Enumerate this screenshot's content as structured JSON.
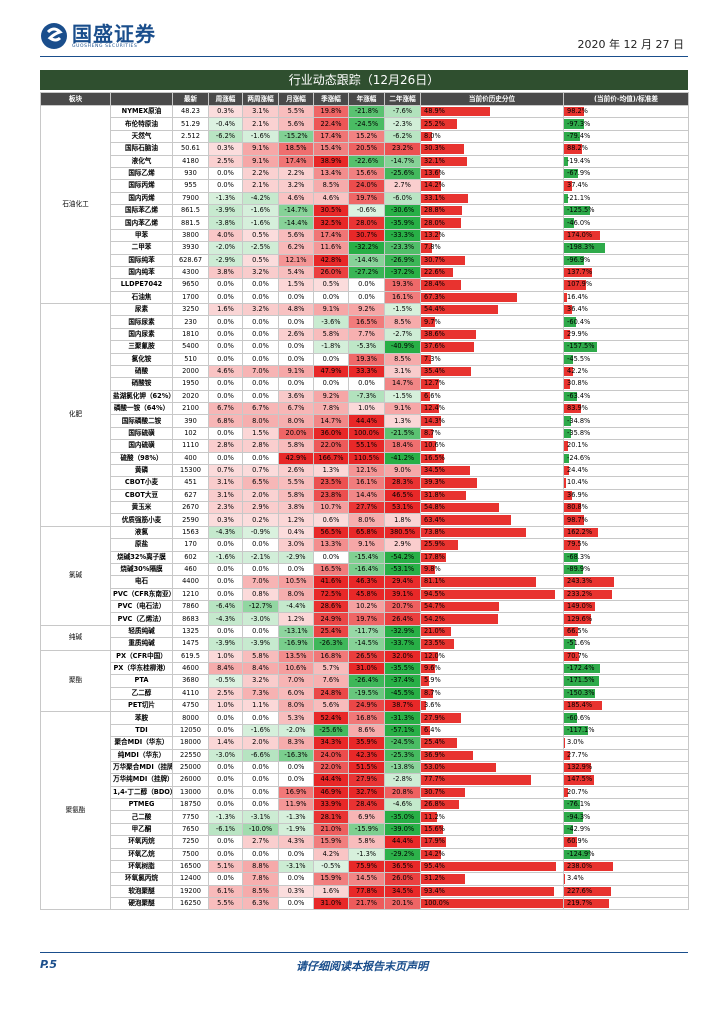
{
  "header": {
    "logo": "国盛证券",
    "logo_sub": "GUOSHENG SECURITIES",
    "date": "2020 年 12 月 27 日"
  },
  "table": {
    "title": "行业动态跟踪（12月26日）",
    "columns": [
      "板块",
      "",
      "最新",
      "周涨幅",
      "两周涨幅",
      "月涨幅",
      "季涨幅",
      "年涨幅",
      "二年涨幅",
      "当前价历史分位",
      "(当前价-均值)/标准差"
    ],
    "groups": [
      {
        "name": "石油化工",
        "rows": [
          [
            "NYMEX原油",
            "48.23",
            "0.3%",
            "3.1%",
            "5.5%",
            "19.8%",
            "-21.8%",
            "-7.6%",
            "48.9%",
            "98.2%"
          ],
          [
            "布伦特原油",
            "51.29",
            "-0.4%",
            "2.1%",
            "5.6%",
            "22.4%",
            "-24.5%",
            "-2.3%",
            "25.2%",
            "-97.3%"
          ],
          [
            "天然气",
            "2.512",
            "-6.2%",
            "-1.6%",
            "-15.2%",
            "17.4%",
            "15.2%",
            "-6.2%",
            "8.0%",
            "-79.4%"
          ],
          [
            "国际石脑油",
            "50.61",
            "0.3%",
            "9.1%",
            "18.5%",
            "15.4%",
            "20.5%",
            "23.2%",
            "30.3%",
            "88.2%"
          ],
          [
            "液化气",
            "4180",
            "2.5%",
            "9.1%",
            "17.4%",
            "38.9%",
            "-22.6%",
            "-14.7%",
            "32.1%",
            "-19.4%"
          ],
          [
            "国际乙烯",
            "930",
            "0.0%",
            "2.2%",
            "2.2%",
            "13.4%",
            "15.6%",
            "-25.6%",
            "13.6%",
            "-67.9%"
          ],
          [
            "国际丙烯",
            "955",
            "0.0%",
            "2.1%",
            "3.2%",
            "8.5%",
            "24.0%",
            "2.7%",
            "14.2%",
            "37.4%"
          ],
          [
            "国内丙烯",
            "7900",
            "-1.3%",
            "-4.2%",
            "4.6%",
            "4.6%",
            "19.7%",
            "-6.0%",
            "33.1%",
            "-21.1%"
          ],
          [
            "国际苯乙烯",
            "861.5",
            "-3.9%",
            "-1.6%",
            "-14.7%",
            "30.5%",
            "-0.6%",
            "-30.6%",
            "28.8%",
            "-125.5%"
          ],
          [
            "国内苯乙烯",
            "881.5",
            "-3.8%",
            "-1.6%",
            "-14.4%",
            "32.5%",
            "28.0%",
            "-35.9%",
            "28.0%",
            "-46.0%"
          ],
          [
            "甲苯",
            "3800",
            "4.0%",
            "0.5%",
            "5.6%",
            "17.4%",
            "30.7%",
            "-33.3%",
            "13.2%",
            "174.0%"
          ],
          [
            "二甲苯",
            "3930",
            "-2.0%",
            "-2.5%",
            "6.2%",
            "11.6%",
            "-32.2%",
            "-23.3%",
            "7.8%",
            "-198.3%"
          ],
          [
            "国际纯苯",
            "628.67",
            "-2.9%",
            "0.5%",
            "12.1%",
            "42.8%",
            "-14.4%",
            "-26.9%",
            "30.7%",
            "-96.9%"
          ],
          [
            "国内纯苯",
            "4300",
            "3.8%",
            "3.2%",
            "5.4%",
            "26.0%",
            "-27.2%",
            "-37.2%",
            "22.6%",
            "137.7%"
          ],
          [
            "LLDPE7042",
            "9650",
            "0.0%",
            "0.0%",
            "1.5%",
            "0.5%",
            "0.0%",
            "19.3%",
            "28.4%",
            "107.9%"
          ],
          [
            "石油焦",
            "1700",
            "0.0%",
            "0.0%",
            "0.0%",
            "0.0%",
            "0.0%",
            "16.1%",
            "67.3%",
            "16.4%"
          ]
        ]
      },
      {
        "name": "化肥",
        "rows": [
          [
            "尿素",
            "3250",
            "1.6%",
            "3.2%",
            "4.8%",
            "9.1%",
            "9.2%",
            "-1.5%",
            "54.4%",
            "36.4%"
          ],
          [
            "国际尿素",
            "230",
            "0.0%",
            "0.0%",
            "0.0%",
            "-3.6%",
            "16.5%",
            "8.5%",
            "9.7%",
            "-60.4%"
          ],
          [
            "国内尿素",
            "1810",
            "0.0%",
            "0.0%",
            "2.6%",
            "5.8%",
            "7.7%",
            "-2.7%",
            "38.6%",
            "29.9%"
          ],
          [
            "三聚氰胺",
            "5400",
            "0.0%",
            "0.0%",
            "0.0%",
            "-1.8%",
            "-5.3%",
            "-40.9%",
            "37.6%",
            "-157.5%"
          ],
          [
            "氯化铵",
            "510",
            "0.0%",
            "0.0%",
            "0.0%",
            "0.0%",
            "19.3%",
            "8.5%",
            "7.3%",
            "-45.5%"
          ],
          [
            "硝酸",
            "2000",
            "4.6%",
            "7.0%",
            "9.1%",
            "47.9%",
            "33.3%",
            "3.1%",
            "35.4%",
            "42.2%"
          ],
          [
            "硝酸铵",
            "1950",
            "0.0%",
            "0.0%",
            "0.0%",
            "0.0%",
            "0.0%",
            "14.7%",
            "12.7%",
            "30.8%"
          ],
          [
            "盐湖氯化钾（62%）",
            "2020",
            "0.0%",
            "0.0%",
            "3.6%",
            "9.2%",
            "-7.3%",
            "-1.5%",
            "6.6%",
            "-63.4%"
          ],
          [
            "磷酸一铵（64%）",
            "2100",
            "6.7%",
            "6.7%",
            "6.7%",
            "7.8%",
            "1.0%",
            "9.1%",
            "12.4%",
            "83.9%"
          ],
          [
            "国际磷酸二铵",
            "390",
            "6.8%",
            "8.0%",
            "8.0%",
            "14.7%",
            "44.4%",
            "1.3%",
            "14.3%",
            "-34.8%"
          ],
          [
            "国际硫磺",
            "102",
            "0.0%",
            "1.5%",
            "20.0%",
            "36.0%",
            "100.0%",
            "-21.5%",
            "8.7%",
            "-35.8%"
          ],
          [
            "国内硫磺",
            "1110",
            "2.8%",
            "2.8%",
            "5.8%",
            "22.0%",
            "55.1%",
            "18.4%",
            "10.6%",
            "20.1%"
          ],
          [
            "硫酸（98%）",
            "400",
            "0.0%",
            "0.0%",
            "42.9%",
            "166.7%",
            "110.5%",
            "-41.2%",
            "16.5%",
            "-24.6%"
          ],
          [
            "黄磷",
            "15300",
            "0.7%",
            "0.7%",
            "2.6%",
            "1.3%",
            "12.1%",
            "9.0%",
            "34.5%",
            "24.4%"
          ],
          [
            "CBOT小麦",
            "451",
            "3.1%",
            "6.5%",
            "5.5%",
            "23.5%",
            "16.1%",
            "28.3%",
            "39.3%",
            "10.4%"
          ],
          [
            "CBOT大豆",
            "627",
            "3.1%",
            "2.0%",
            "5.8%",
            "23.8%",
            "14.4%",
            "46.5%",
            "31.8%",
            "36.9%"
          ],
          [
            "黄玉米",
            "2670",
            "2.3%",
            "2.9%",
            "3.8%",
            "10.7%",
            "27.7%",
            "53.1%",
            "54.8%",
            "80.8%"
          ],
          [
            "优质强筋小麦",
            "2590",
            "0.3%",
            "0.2%",
            "1.2%",
            "0.6%",
            "8.0%",
            "1.8%",
            "63.4%",
            "98.7%"
          ]
        ]
      },
      {
        "name": "氯碱",
        "rows": [
          [
            "液氯",
            "1563",
            "-4.3%",
            "-0.9%",
            "0.4%",
            "56.5%",
            "65.8%",
            "380.5%",
            "73.8%",
            "162.2%"
          ],
          [
            "原盐",
            "170",
            "0.0%",
            "0.0%",
            "3.0%",
            "13.3%",
            "9.1%",
            "2.9%",
            "25.9%",
            "79.5%"
          ],
          [
            "烧碱32%离子膜",
            "602",
            "-1.6%",
            "-2.1%",
            "-2.9%",
            "0.0%",
            "-15.4%",
            "-54.2%",
            "17.8%",
            "-68.3%"
          ],
          [
            "烧碱30%隔膜",
            "460",
            "0.0%",
            "0.0%",
            "0.0%",
            "16.5%",
            "-16.4%",
            "-53.1%",
            "9.8%",
            "-89.9%"
          ],
          [
            "电石",
            "4400",
            "0.0%",
            "7.0%",
            "10.5%",
            "41.6%",
            "46.3%",
            "29.4%",
            "81.1%",
            "243.3%"
          ],
          [
            "PVC（CFR东南亚）",
            "1210",
            "0.0%",
            "0.8%",
            "8.0%",
            "72.5%",
            "45.8%",
            "39.1%",
            "94.5%",
            "233.2%"
          ],
          [
            "PVC（电石法）",
            "7860",
            "-6.4%",
            "-12.7%",
            "-4.4%",
            "28.6%",
            "10.2%",
            "20.7%",
            "54.7%",
            "149.0%"
          ],
          [
            "PVC（乙烯法）",
            "8683",
            "-4.3%",
            "-3.0%",
            "1.2%",
            "24.9%",
            "19.7%",
            "26.4%",
            "54.2%",
            "129.6%"
          ]
        ]
      },
      {
        "name": "纯碱",
        "rows": [
          [
            "轻质纯碱",
            "1325",
            "0.0%",
            "0.0%",
            "-13.1%",
            "25.4%",
            "-11.7%",
            "-32.9%",
            "21.0%",
            "66.5%"
          ],
          [
            "重质纯碱",
            "1475",
            "-3.9%",
            "-3.9%",
            "-16.9%",
            "-26.3%",
            "-14.5%",
            "-33.7%",
            "23.5%",
            "-51.6%"
          ]
        ]
      },
      {
        "name": "聚酯",
        "rows": [
          [
            "PX（CFR中国）",
            "619.5",
            "1.0%",
            "5.8%",
            "13.5%",
            "16.8%",
            "26.5%",
            "32.0%",
            "12.0%",
            "70.7%"
          ],
          [
            "PX（华东桂柳港）",
            "4600",
            "8.4%",
            "8.4%",
            "10.6%",
            "5.7%",
            "31.0%",
            "-35.5%",
            "9.6%",
            "-172.4%"
          ],
          [
            "PTA",
            "3680",
            "-0.5%",
            "3.2%",
            "7.0%",
            "7.6%",
            "-26.4%",
            "-37.4%",
            "5.9%",
            "-171.5%"
          ],
          [
            "乙二醇",
            "4110",
            "2.5%",
            "7.3%",
            "6.0%",
            "24.8%",
            "-19.5%",
            "-45.5%",
            "8.7%",
            "-150.3%"
          ],
          [
            "PET切片",
            "4750",
            "1.0%",
            "1.1%",
            "8.0%",
            "5.6%",
            "24.9%",
            "38.7%",
            "3.6%",
            "185.4%"
          ]
        ]
      },
      {
        "name": "聚氨酯",
        "rows": [
          [
            "苯胺",
            "8000",
            "0.0%",
            "0.0%",
            "5.3%",
            "52.4%",
            "16.8%",
            "-31.3%",
            "27.9%",
            "-60.6%"
          ],
          [
            "TDI",
            "12050",
            "0.0%",
            "-1.6%",
            "-2.0%",
            "-25.6%",
            "8.6%",
            "-57.1%",
            "6.4%",
            "-117.1%"
          ],
          [
            "聚合MDI（华东）",
            "18000",
            "1.4%",
            "2.0%",
            "8.3%",
            "34.3%",
            "35.9%",
            "-24.5%",
            "25.4%",
            "3.0%"
          ],
          [
            "纯MDI（华东）",
            "22550",
            "-3.0%",
            "-6.6%",
            "-16.3%",
            "24.0%",
            "42.3%",
            "-25.3%",
            "36.9%",
            "27.7%"
          ],
          [
            "万华聚合MDI（挂牌）",
            "25000",
            "0.0%",
            "0.0%",
            "0.0%",
            "22.0%",
            "51.5%",
            "-13.8%",
            "53.0%",
            "132.9%"
          ],
          [
            "万华纯MDI（挂牌）",
            "26000",
            "0.0%",
            "0.0%",
            "0.0%",
            "44.4%",
            "27.9%",
            "-2.8%",
            "77.7%",
            "147.5%"
          ],
          [
            "1,4-丁二醇（BDO）",
            "13000",
            "0.0%",
            "0.0%",
            "16.9%",
            "46.9%",
            "32.7%",
            "20.8%",
            "30.7%",
            "20.7%"
          ],
          [
            "PTMEG",
            "18750",
            "0.0%",
            "0.0%",
            "11.9%",
            "33.9%",
            "28.4%",
            "-4.6%",
            "26.8%",
            "-76.1%"
          ],
          [
            "己二酸",
            "7750",
            "-1.3%",
            "-3.1%",
            "-1.3%",
            "28.1%",
            "6.9%",
            "-35.0%",
            "11.2%",
            "-94.3%"
          ],
          [
            "甲乙酮",
            "7650",
            "-6.1%",
            "-10.0%",
            "-1.9%",
            "21.0%",
            "-15.9%",
            "-39.0%",
            "15.6%",
            "-42.9%"
          ],
          [
            "环氧丙烷",
            "7250",
            "0.0%",
            "2.7%",
            "4.3%",
            "15.9%",
            "5.8%",
            "44.4%",
            "17.9%",
            "60.9%"
          ],
          [
            "环氧乙烷",
            "7500",
            "0.0%",
            "0.0%",
            "0.0%",
            "4.2%",
            "-1.3%",
            "-29.2%",
            "14.2%",
            "-124.9%"
          ],
          [
            "环氧树脂",
            "16500",
            "5.1%",
            "8.8%",
            "-3.1%",
            "-0.5%",
            "75.9%",
            "36.5%",
            "95.4%",
            "238.0%"
          ],
          [
            "环氧氯丙烷",
            "12400",
            "0.0%",
            "7.8%",
            "0.0%",
            "15.9%",
            "14.5%",
            "26.0%",
            "31.2%",
            "3.4%"
          ],
          [
            "软泡聚醚",
            "19200",
            "6.1%",
            "8.5%",
            "0.3%",
            "1.6%",
            "77.8%",
            "34.5%",
            "93.4%",
            "227.6%"
          ],
          [
            "硬泡聚醚",
            "16250",
            "5.5%",
            "6.3%",
            "0.0%",
            "31.0%",
            "21.7%",
            "20.1%",
            "100.0%",
            "219.7%"
          ]
        ]
      }
    ]
  },
  "footer": {
    "page": "P.5",
    "disclaimer": "请仔细阅读本报告末页声明"
  }
}
